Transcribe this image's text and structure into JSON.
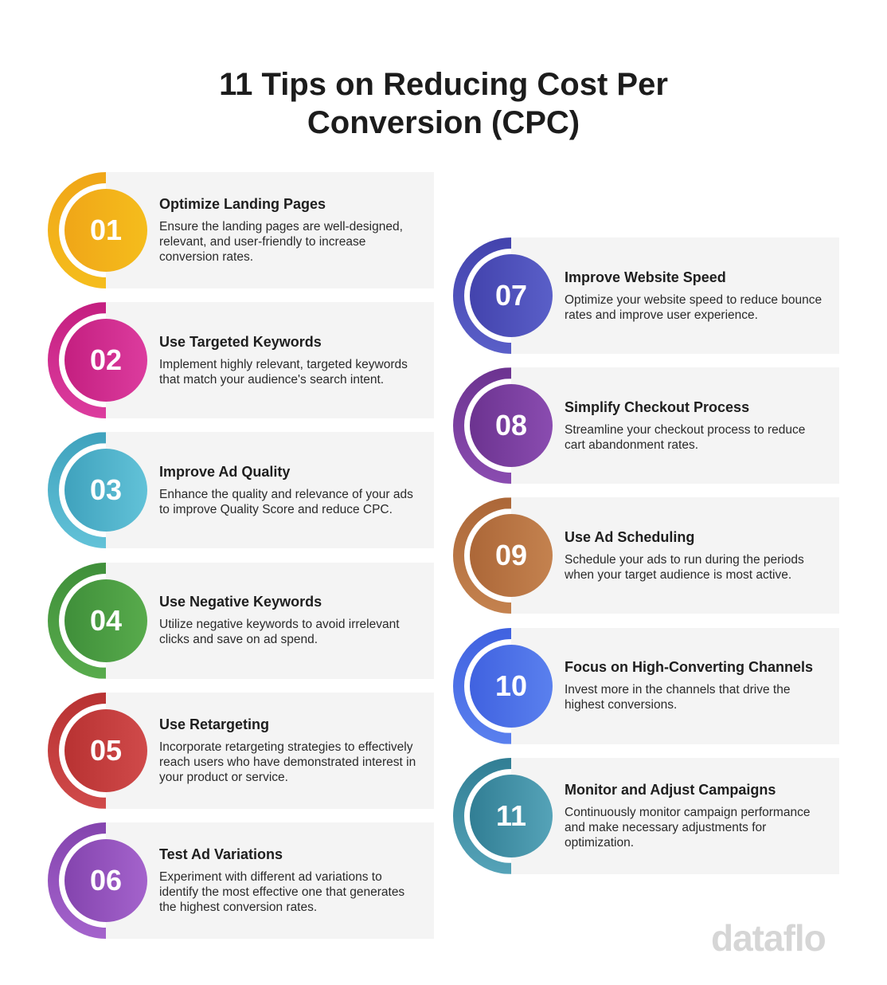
{
  "title_line1": "11 Tips on Reducing Cost Per",
  "title_line2": "Conversion (CPC)",
  "logo": "dataflo",
  "tips": [
    {
      "num": "01",
      "title": "Optimize Landing Pages",
      "desc": "Ensure the landing pages are well-designed, relevant, and user-friendly to increase conversion rates.",
      "color": "#f0a618",
      "color2": "#f5bd1c"
    },
    {
      "num": "02",
      "title": "Use Targeted Keywords",
      "desc": "Implement highly relevant, targeted keywords that match your audience's search intent.",
      "color": "#c41f80",
      "color2": "#dc3c9e"
    },
    {
      "num": "03",
      "title": "Improve Ad Quality",
      "desc": "Enhance the quality and relevance of your ads to improve Quality Score and reduce CPC.",
      "color": "#3fa2bd",
      "color2": "#62c2d8"
    },
    {
      "num": "04",
      "title": "Use Negative Keywords",
      "desc": "Utilize negative keywords to avoid irrelevant clicks and save on ad spend.",
      "color": "#3f8f3a",
      "color2": "#58ab4c"
    },
    {
      "num": "05",
      "title": "Use Retargeting",
      "desc": "Incorporate retargeting strategies to effectively reach users who have demonstrated interest in your product or service.",
      "color": "#b83232",
      "color2": "#d04a4a"
    },
    {
      "num": "06",
      "title": "Test Ad Variations",
      "desc": "Experiment with different ad variations to identify the most effective one that generates the highest conversion rates.",
      "color": "#8444ae",
      "color2": "#a463cc"
    },
    {
      "num": "07",
      "title": "Improve Website Speed",
      "desc": "Optimize your website speed to reduce bounce rates and improve user experience.",
      "color": "#4343ad",
      "color2": "#5a5fc8"
    },
    {
      "num": "08",
      "title": "Simplify Checkout Process",
      "desc": "Streamline your checkout process to reduce cart abandonment rates.",
      "color": "#6c3390",
      "color2": "#8a4cb0"
    },
    {
      "num": "09",
      "title": "Use Ad Scheduling",
      "desc": "Schedule your ads to run during the periods when your target audience is most active.",
      "color": "#ac6738",
      "color2": "#c4824f"
    },
    {
      "num": "10",
      "title": "Focus on High-Converting Channels",
      "desc": "Invest more in the channels that drive the highest conversions.",
      "color": "#4062e0",
      "color2": "#5a80ee"
    },
    {
      "num": "11",
      "title": "Monitor and Adjust Campaigns",
      "desc": "Continuously monitor campaign performance and make necessary adjustments for optimization.",
      "color": "#317e94",
      "color2": "#55a3b8"
    }
  ]
}
